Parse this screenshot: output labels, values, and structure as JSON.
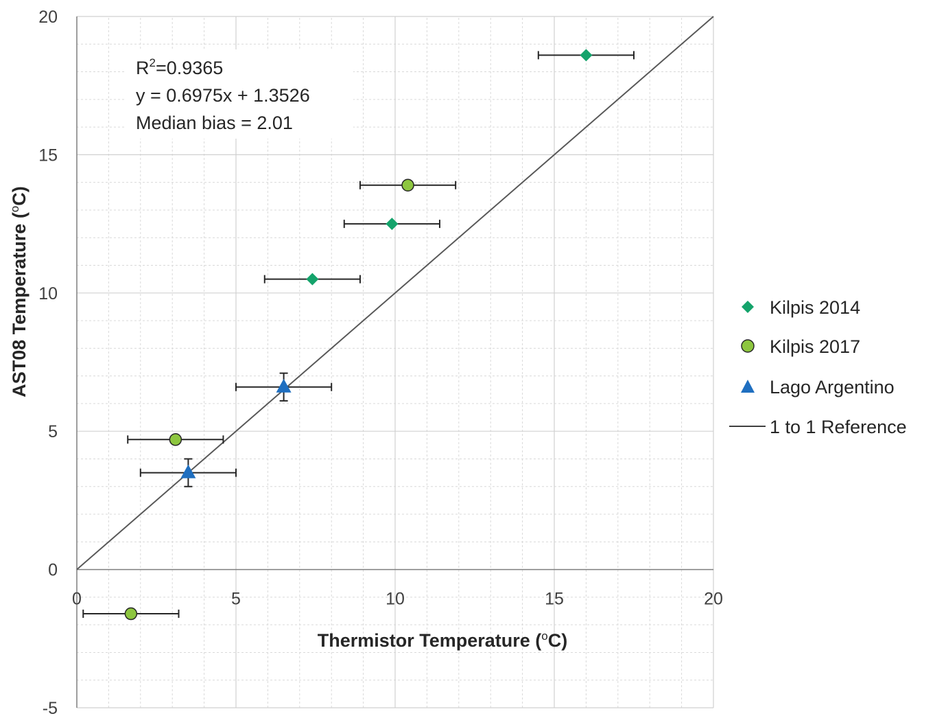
{
  "chart_data": {
    "type": "scatter",
    "xlabel": "Thermistor Temperature (",
    "xlabel_unit": "C)",
    "ylabel": "AST08 Temperature (",
    "ylabel_unit": "C)",
    "degree_symbol": "o",
    "xlim": [
      0,
      20
    ],
    "ylim": [
      -5,
      20
    ],
    "xticks": [
      "0",
      "5",
      "10",
      "15",
      "20"
    ],
    "yticks": [
      "-5",
      "0",
      "5",
      "10",
      "15",
      "20"
    ],
    "grid": true,
    "legend_position": "right",
    "annotations": {
      "r2_prefix": "R",
      "r2_sup": "2",
      "r2_value": "=0.9365",
      "equation": "y = 0.6975x + 1.3526",
      "median_bias": "Median bias = 2.01"
    },
    "series": [
      {
        "name": "Kilpis 2014",
        "marker": "diamond",
        "color": "#14a36b",
        "points": [
          {
            "x": 7.4,
            "y": 10.5,
            "xerr": 1.5
          },
          {
            "x": 9.9,
            "y": 12.5,
            "xerr": 1.5
          },
          {
            "x": 16.0,
            "y": 18.6,
            "xerr": 1.5
          }
        ]
      },
      {
        "name": "Kilpis 2017",
        "marker": "circle",
        "color": "#8dc63f",
        "points": [
          {
            "x": 1.7,
            "y": -1.6,
            "xerr": 1.5
          },
          {
            "x": 3.1,
            "y": 4.7,
            "xerr": 1.5
          },
          {
            "x": 10.4,
            "y": 13.9,
            "xerr": 1.5
          }
        ]
      },
      {
        "name": "Lago Argentino",
        "marker": "triangle",
        "color": "#1f6fc0",
        "points": [
          {
            "x": 3.5,
            "y": 3.5,
            "xerr": 1.5,
            "yerr": 0.5
          },
          {
            "x": 6.5,
            "y": 6.6,
            "xerr": 1.5,
            "yerr": 0.5
          }
        ]
      }
    ],
    "reference_line": {
      "name": "1 to 1 Reference",
      "x": [
        0,
        20
      ],
      "y": [
        0,
        20
      ],
      "color": "#595959"
    }
  }
}
